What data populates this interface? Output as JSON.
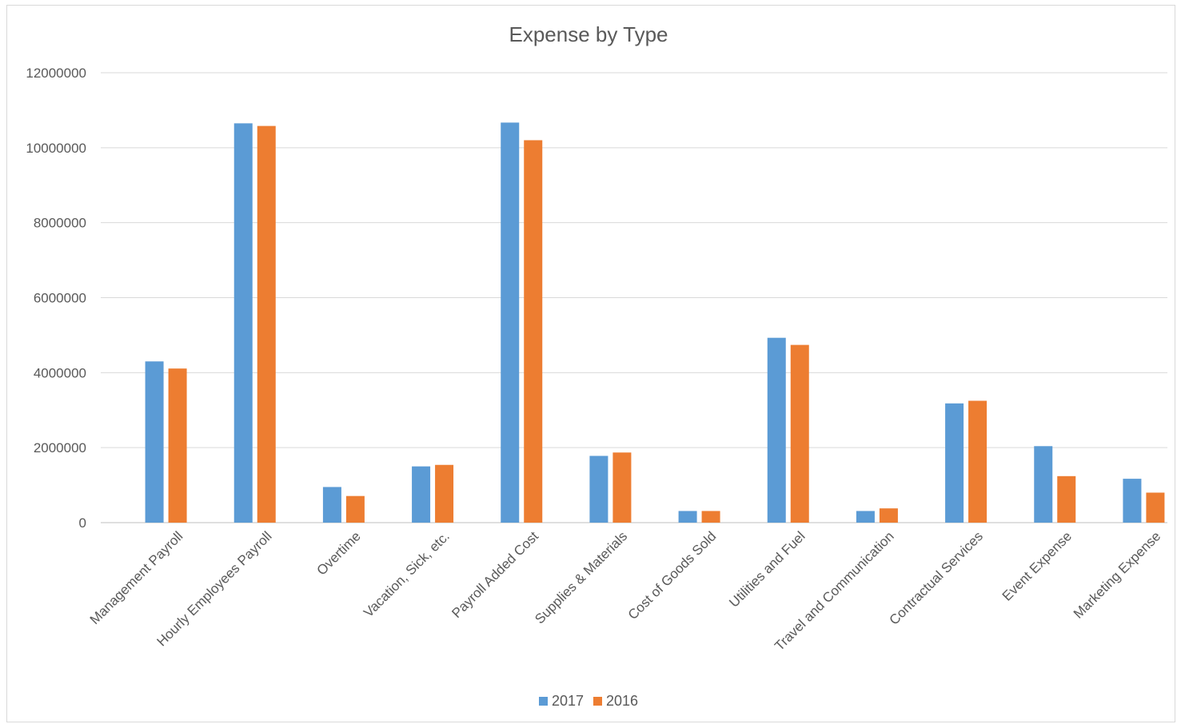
{
  "chart_data": {
    "type": "bar",
    "title": "Expense by Type",
    "xlabel": "",
    "ylabel": "",
    "ylim": [
      0,
      12000000
    ],
    "yticks": [
      "0",
      "2000000",
      "4000000",
      "6000000",
      "8000000",
      "10000000",
      "12000000"
    ],
    "grid": true,
    "legend_position": "bottom",
    "categories": [
      "Management Payroll",
      "Hourly Employees Payroll",
      "Overtime",
      "Vacation, Sick, etc.",
      "Payroll Added Cost",
      "Supplies & Materials",
      "Cost of Goods Sold",
      "Utilities and Fuel",
      "Travel and Communication",
      "Contractual Services",
      "Event Expense",
      "Marketing Expense"
    ],
    "series": [
      {
        "name": "2017",
        "color": "#5b9bd5",
        "values": [
          4300000,
          10650000,
          950000,
          1500000,
          10670000,
          1780000,
          310000,
          4930000,
          310000,
          3180000,
          2040000,
          1170000
        ]
      },
      {
        "name": "2016",
        "color": "#ed7d31",
        "values": [
          4110000,
          10580000,
          710000,
          1540000,
          10200000,
          1870000,
          310000,
          4740000,
          380000,
          3250000,
          1240000,
          800000
        ]
      }
    ]
  }
}
